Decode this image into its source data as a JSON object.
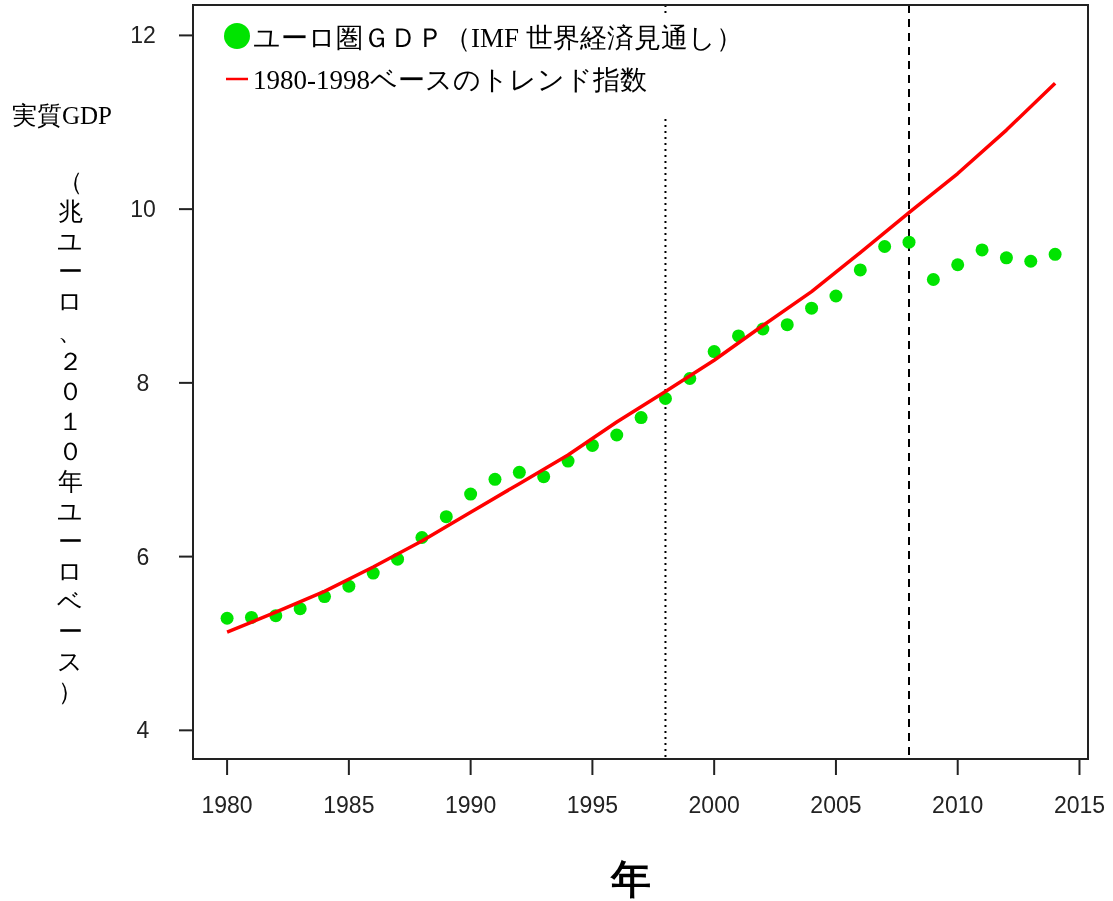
{
  "chart_data": {
    "type": "scatter",
    "xlabel": "年",
    "ylabel": "実質GDP",
    "annotations": [
      "（兆ユーロ、２０１０年ユーロベース）"
    ],
    "xlim": [
      1978.6,
      2015.35
    ],
    "ylim": [
      3.67,
      12.35
    ],
    "xticks": [
      1980,
      1985,
      1990,
      1995,
      2000,
      2005,
      2010,
      2015
    ],
    "yticks": [
      4,
      6,
      8,
      10,
      12
    ],
    "marker": "circle",
    "legend": "top left",
    "series": [
      {
        "name": "ユーロ圏ＧＤＰ（IMF 世界経済見通し）",
        "color": "#00e400",
        "x": [
          1980,
          1981,
          1982,
          1983,
          1984,
          1985,
          1986,
          1987,
          1988,
          1989,
          1990,
          1991,
          1992,
          1993,
          1994,
          1995,
          1996,
          1997,
          1998,
          1999,
          2000,
          2001,
          2002,
          2003,
          2004,
          2005,
          2006,
          2007,
          2008,
          2009,
          2010,
          2011,
          2012,
          2013,
          2014
        ],
        "values": [
          5.29,
          5.3,
          5.32,
          5.4,
          5.54,
          5.66,
          5.81,
          5.97,
          6.22,
          6.46,
          6.72,
          6.89,
          6.97,
          6.92,
          7.1,
          7.28,
          7.4,
          7.6,
          7.82,
          8.05,
          8.36,
          8.54,
          8.62,
          8.67,
          8.86,
          9.0,
          9.3,
          9.57,
          9.62,
          9.19,
          9.36,
          9.53,
          9.44,
          9.4,
          9.48
        ]
      },
      {
        "name": "1980-1998ベースのトレンド指数",
        "type": "line",
        "marker": "none",
        "color": "#ff0000",
        "x": [
          1980,
          1982,
          1984,
          1986,
          1988,
          1990,
          1992,
          1994,
          1996,
          1998,
          2000,
          2002,
          2004,
          2006,
          2008,
          2010,
          2012,
          2014
        ],
        "values": [
          5.13,
          5.36,
          5.6,
          5.88,
          6.18,
          6.51,
          6.84,
          7.17,
          7.55,
          7.9,
          8.26,
          8.66,
          9.05,
          9.5,
          9.96,
          10.41,
          10.91,
          11.45
        ]
      }
    ],
    "ref_lines": [
      {
        "axis": "x",
        "value": 1998,
        "line_style": "dotted",
        "color": "#000000"
      },
      {
        "axis": "x",
        "value": 2008,
        "line_style": "dashed",
        "color": "#000000"
      }
    ]
  }
}
